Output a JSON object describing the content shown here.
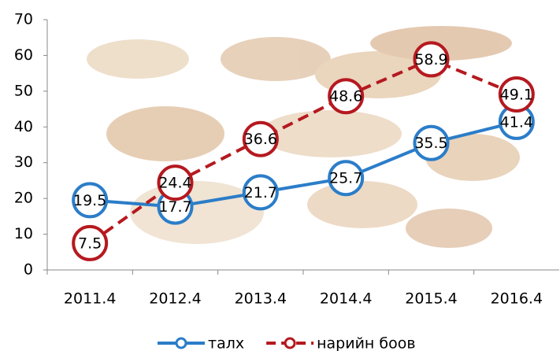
{
  "chart_data": {
    "type": "line",
    "categories": [
      "2011.4",
      "2012.4",
      "2013.4",
      "2014.4",
      "2015.4",
      "2016.4"
    ],
    "series": [
      {
        "name": "талх",
        "color": "#2b7dc8",
        "dashed": false,
        "values": [
          19.5,
          17.7,
          21.7,
          25.7,
          35.5,
          41.4
        ]
      },
      {
        "name": "нарийн боов",
        "color": "#b5191f",
        "dashed": true,
        "values": [
          7.5,
          24.4,
          36.6,
          48.6,
          58.9,
          49.1
        ]
      }
    ],
    "ylim": [
      0,
      70
    ],
    "yticks": [
      0,
      10,
      20,
      30,
      40,
      50,
      60,
      70
    ],
    "grid": false,
    "data_labels": true,
    "legend": "bottom"
  }
}
